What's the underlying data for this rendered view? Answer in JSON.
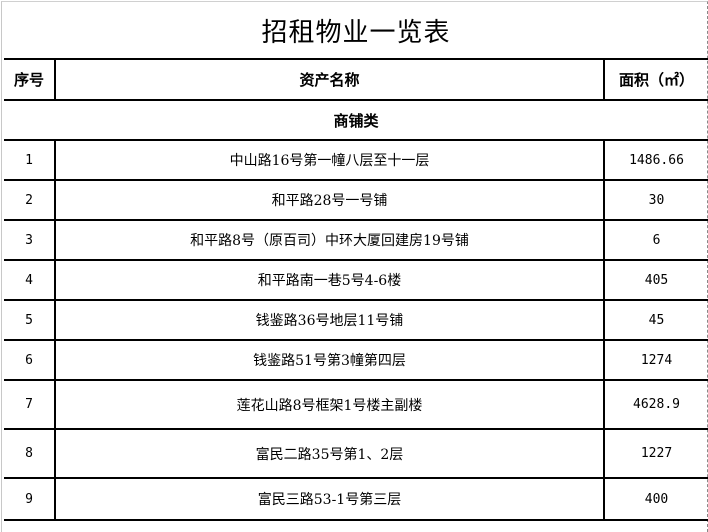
{
  "title": "招租物业一览表",
  "headers": {
    "index": "序号",
    "name": "资产名称",
    "area": "面积（㎡）"
  },
  "category": "商铺类",
  "rows": [
    {
      "index": "1",
      "name": "中山路16号第一幢八层至十一层",
      "area": "1486.66"
    },
    {
      "index": "2",
      "name": "和平路28号一号铺",
      "area": "30"
    },
    {
      "index": "3",
      "name": "和平路8号（原百司）中环大厦回建房19号铺",
      "area": "6"
    },
    {
      "index": "4",
      "name": "和平路南一巷5号4-6楼",
      "area": "405"
    },
    {
      "index": "5",
      "name": "钱鉴路36号地层11号铺",
      "area": "45"
    },
    {
      "index": "6",
      "name": "钱鉴路51号第3幢第四层",
      "area": "1274"
    },
    {
      "index": "7",
      "name": "莲花山路8号框架1号楼主副楼",
      "area": "4628.9"
    },
    {
      "index": "8",
      "name": "富民二路35号第1、2层",
      "area": "1227"
    },
    {
      "index": "9",
      "name": "富民三路53-1号第三层",
      "area": "400"
    }
  ]
}
